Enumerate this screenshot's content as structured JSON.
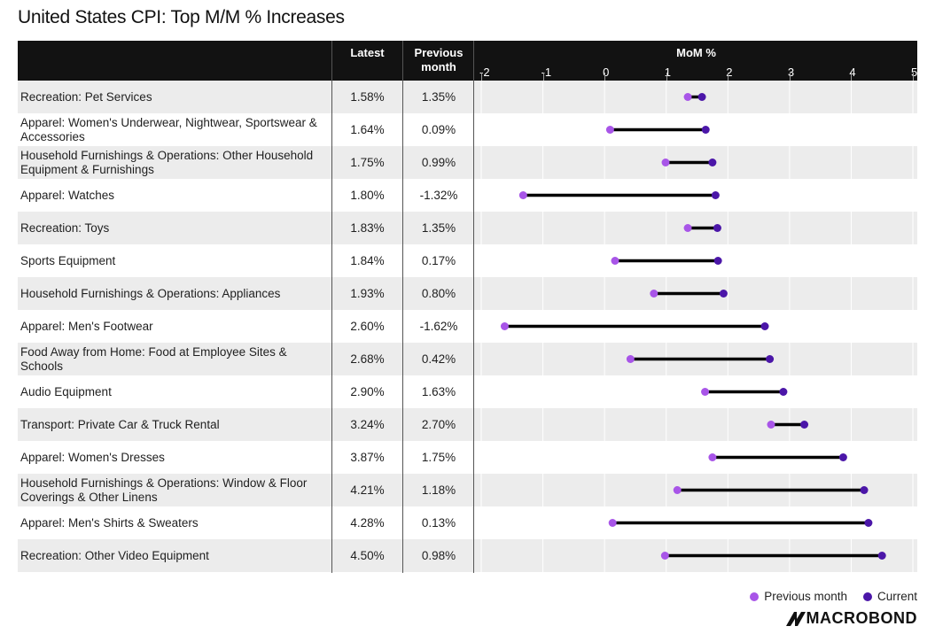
{
  "chart_data": {
    "type": "dumbbell",
    "title": "United States CPI: Top M/M % Increases",
    "columns": {
      "name": "",
      "latest": "Latest",
      "previous": "Previous month",
      "chart": "MoM %"
    },
    "x_ticks": [
      "-2",
      "-1",
      "0",
      "1",
      "2",
      "3",
      "4",
      "5"
    ],
    "xlim": [
      -2,
      5
    ],
    "categories": [
      "Recreation: Pet Services",
      "Apparel: Women's Underwear, Nightwear, Sportswear & Accessories",
      "Household Furnishings & Operations: Other Household Equipment & Furnishings",
      "Apparel: Watches",
      "Recreation: Toys",
      "Sports Equipment",
      "Household Furnishings & Operations: Appliances",
      "Apparel: Men's Footwear",
      "Food Away from Home: Food at Employee Sites & Schools",
      "Audio Equipment",
      "Transport: Private Car & Truck Rental",
      "Apparel: Women's Dresses",
      "Household Furnishings & Operations: Window & Floor Coverings & Other Linens",
      "Apparel: Men's Shirts & Sweaters",
      "Recreation: Other Video Equipment"
    ],
    "latest_labels": [
      "1.58%",
      "1.64%",
      "1.75%",
      "1.80%",
      "1.83%",
      "1.84%",
      "1.93%",
      "2.60%",
      "2.68%",
      "2.90%",
      "3.24%",
      "3.87%",
      "4.21%",
      "4.28%",
      "4.50%"
    ],
    "previous_labels": [
      "1.35%",
      "0.09%",
      "0.99%",
      "-1.32%",
      "1.35%",
      "0.17%",
      "0.80%",
      "-1.62%",
      "0.42%",
      "1.63%",
      "2.70%",
      "1.75%",
      "1.18%",
      "0.13%",
      "0.98%"
    ],
    "series": [
      {
        "name": "Previous month",
        "color": "#a855e8",
        "values": [
          1.35,
          0.09,
          0.99,
          -1.32,
          1.35,
          0.17,
          0.8,
          -1.62,
          0.42,
          1.63,
          2.7,
          1.75,
          1.18,
          0.13,
          0.98
        ]
      },
      {
        "name": "Current",
        "color": "#4b16a8",
        "values": [
          1.58,
          1.64,
          1.75,
          1.8,
          1.83,
          1.84,
          1.93,
          2.6,
          2.68,
          2.9,
          3.24,
          3.87,
          4.21,
          4.28,
          4.5
        ]
      }
    ],
    "legend": "bottom-right",
    "source": "MACROBOND"
  }
}
